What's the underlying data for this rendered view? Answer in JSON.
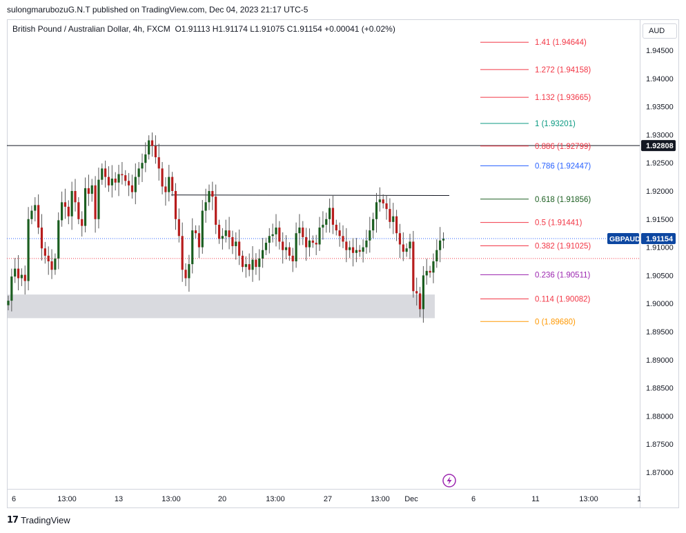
{
  "header": {
    "published_by": "sulongmarubozuG.N.T published on TradingView.com, Dec 04, 2023 21:17 UTC-5"
  },
  "legend": {
    "symbol_name": "British Pound / Australian Dollar, 4h, FXCM",
    "ohlc": "O1.91113  H1.91174  L1.91075  C1.91154  +0.00041 (+0.02%)"
  },
  "currency_label": "AUD",
  "footer": {
    "brand": "TradingView"
  },
  "chart_data": {
    "type": "candlestick",
    "symbol": "GBPAUD",
    "ylim": [
      1.8665,
      1.9475
    ],
    "y_ticks": [
      "1.94500",
      "1.94000",
      "1.93500",
      "1.93000",
      "1.92500",
      "1.92000",
      "1.91500",
      "1.91000",
      "1.90500",
      "1.90000",
      "1.89500",
      "1.89000",
      "1.88500",
      "1.88000",
      "1.87500",
      "1.87000"
    ],
    "x_ticks": [
      "6",
      "13:00",
      "13",
      "13:00",
      "20",
      "13:00",
      "27",
      "13:00",
      "Dec",
      "6",
      "11",
      "13:00",
      "1"
    ],
    "last_price": {
      "label": "GBPAUD",
      "value": "1.91154"
    },
    "horizontal_line": {
      "value": "1.92808"
    },
    "trendline": {
      "from_value": 1.9193,
      "to_value": 1.9192,
      "label": ""
    },
    "support_zone": {
      "low": 1.8974,
      "high": 1.9016
    },
    "fib_levels": [
      {
        "label": "1.41 (1.94644)",
        "value": 1.94644,
        "color": "#f23645"
      },
      {
        "label": "1.272 (1.94158)",
        "value": 1.94158,
        "color": "#f23645"
      },
      {
        "label": "1.132 (1.93665)",
        "value": 1.93665,
        "color": "#f23645"
      },
      {
        "label": "1 (1.93201)",
        "value": 1.93201,
        "color": "#089981"
      },
      {
        "label": "0.886 (1.92799)",
        "value": 1.92799,
        "color": "#f23645"
      },
      {
        "label": "0.786 (1.92447)",
        "value": 1.92447,
        "color": "#2962ff"
      },
      {
        "label": "0.618 (1.91856)",
        "value": 1.91856,
        "color": "#1b5e20"
      },
      {
        "label": "0.5 (1.91441)",
        "value": 1.91441,
        "color": "#f23645"
      },
      {
        "label": "0.382 (1.91025)",
        "value": 1.91025,
        "color": "#f23645"
      },
      {
        "label": "0.236 (1.90511)",
        "value": 1.90511,
        "color": "#9c27b0"
      },
      {
        "label": "0.114 (1.90082)",
        "value": 1.90082,
        "color": "#f23645"
      },
      {
        "label": "0 (1.89680)",
        "value": 1.8968,
        "color": "#ff9800"
      }
    ],
    "candles_close": [
      1.9005,
      1.9048,
      1.9062,
      1.9045,
      1.9051,
      1.904,
      1.915,
      1.9165,
      1.9175,
      1.9135,
      1.9098,
      1.9085,
      1.9075,
      1.906,
      1.908,
      1.9148,
      1.918,
      1.9172,
      1.9155,
      1.92,
      1.918,
      1.915,
      1.9138,
      1.9205,
      1.9195,
      1.921,
      1.915,
      1.922,
      1.924,
      1.9225,
      1.921,
      1.9222,
      1.9215,
      1.923,
      1.9228,
      1.9218,
      1.921,
      1.9198,
      1.9225,
      1.924,
      1.925,
      1.9265,
      1.929,
      1.928,
      1.926,
      1.924,
      1.9208,
      1.9198,
      1.9225,
      1.92,
      1.915,
      1.912,
      1.906,
      1.9045,
      1.907,
      1.913,
      1.9125,
      1.91,
      1.9165,
      1.918,
      1.92,
      1.919,
      1.914,
      1.9115,
      1.912,
      1.913,
      1.9118,
      1.9102,
      1.911,
      1.9085,
      1.9065,
      1.907,
      1.906,
      1.9078,
      1.9065,
      1.908,
      1.9095,
      1.9108,
      1.912,
      1.9123,
      1.9135,
      1.911,
      1.9095,
      1.91,
      1.9085,
      1.9075,
      1.9125,
      1.9135,
      1.9118,
      1.91,
      1.9112,
      1.9108,
      1.9105,
      1.9135,
      1.914,
      1.915,
      1.917,
      1.914,
      1.913,
      1.912,
      1.911,
      1.9095,
      1.91,
      1.909,
      1.9095,
      1.9092,
      1.91,
      1.9112,
      1.913,
      1.915,
      1.918,
      1.9185,
      1.9178,
      1.9168,
      1.9145,
      1.9155,
      1.9125,
      1.9105,
      1.9092,
      1.9098,
      1.911,
      1.9022,
      1.9018,
      1.899,
      1.905,
      1.9058,
      1.9055,
      1.9075,
      1.9095,
      1.9112,
      1.9115
    ]
  }
}
